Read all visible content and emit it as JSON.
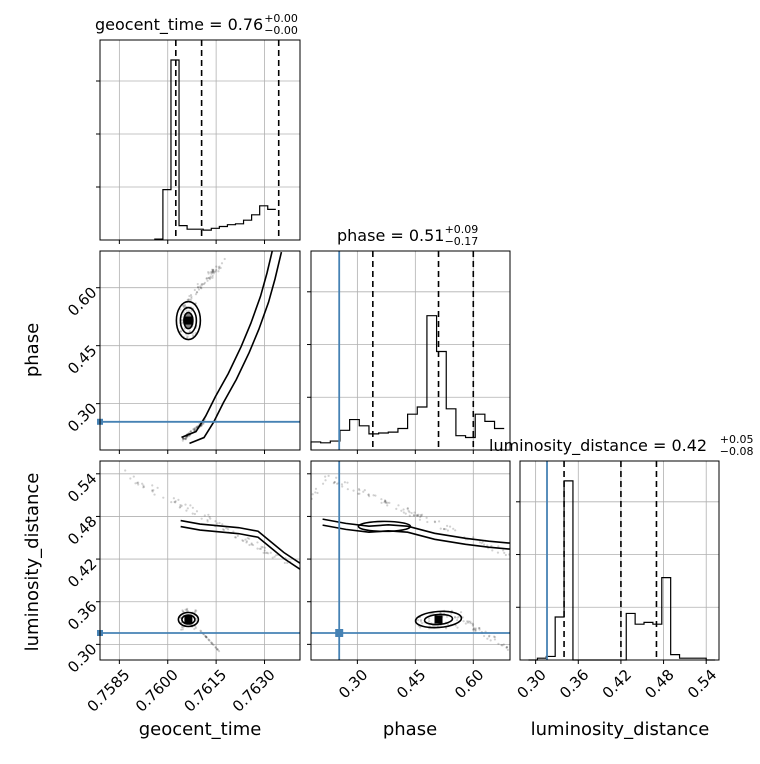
{
  "chart_data": {
    "type": "corner",
    "parameters": [
      "geocent_time",
      "phase",
      "luminosity_distance"
    ],
    "titles": [
      {
        "name": "geocent_time",
        "value": "0.76",
        "plus": "+0.00",
        "minus": "−0.00"
      },
      {
        "name": "phase",
        "value": "0.51",
        "plus": "+0.09",
        "minus": "−0.17"
      },
      {
        "name": "luminosity_distance",
        "value": "0.42",
        "plus": "+0.05",
        "minus": "−0.08"
      }
    ],
    "axes": {
      "geocent_time": {
        "range": [
          0.7579,
          0.7641
        ],
        "ticks": [
          "0.7585",
          "0.7600",
          "0.7615",
          "0.7630"
        ],
        "tick_values": [
          0.7585,
          0.76,
          0.7615,
          0.763
        ]
      },
      "phase": {
        "range": [
          0.18,
          0.695
        ],
        "ticks": [
          "0.30",
          "0.45",
          "0.60"
        ],
        "tick_values": [
          0.3,
          0.45,
          0.6
        ]
      },
      "luminosity_distance": {
        "range": [
          0.278,
          0.558
        ],
        "ticks": [
          "0.30",
          "0.36",
          "0.42",
          "0.48",
          "0.54"
        ],
        "tick_values": [
          0.3,
          0.36,
          0.42,
          0.48,
          0.54
        ]
      }
    },
    "truths": {
      "phase": 0.253,
      "luminosity_distance": 0.316
    },
    "quantiles": {
      "geocent_time": [
        0.76025,
        0.76105,
        0.76344
      ],
      "phase": [
        0.34,
        0.51,
        0.6
      ],
      "luminosity_distance": [
        0.34,
        0.42,
        0.47
      ]
    },
    "histograms": {
      "geocent_time": {
        "edges_start": 0.7596,
        "edge_step": 0.00025,
        "counts": [
          0.005,
          0.28,
          1.0,
          0.08,
          0.06,
          0.06,
          0.055,
          0.065,
          0.075,
          0.085,
          0.09,
          0.11,
          0.14,
          0.19,
          0.17
        ]
      },
      "phase": {
        "edges_start": 0.18,
        "edge_step": 0.025,
        "counts": [
          0.045,
          0.04,
          0.05,
          0.11,
          0.17,
          0.135,
          0.09,
          0.095,
          0.1,
          0.12,
          0.2,
          0.24,
          0.75,
          0.55,
          0.23,
          0.08,
          0.07,
          0.2,
          0.16,
          0.12
        ]
      },
      "luminosity_distance": {
        "edges_start": 0.29,
        "edge_step": 0.0125,
        "counts": [
          0.0,
          0.01,
          0.02,
          0.24,
          1.0,
          0.0,
          0.0,
          0.0,
          0.0,
          0.0,
          0.0,
          0.26,
          0.2,
          0.21,
          0.2,
          0.46,
          0.03,
          0.01,
          0.01,
          0.01,
          0.0
        ]
      }
    },
    "grid": true
  }
}
